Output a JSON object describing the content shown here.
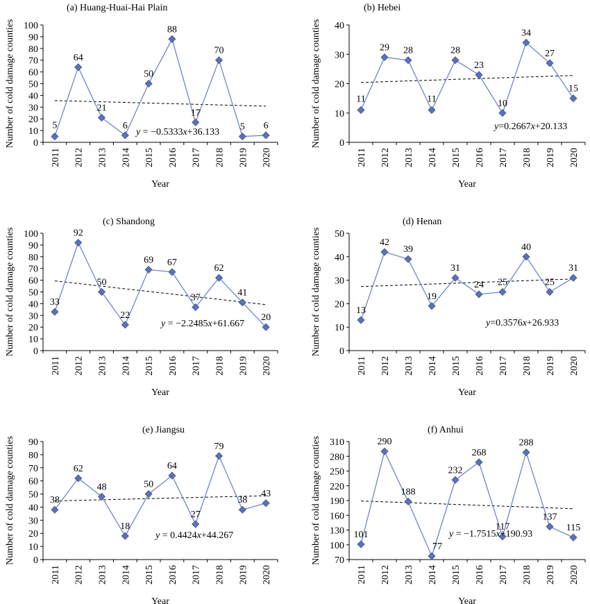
{
  "chart_data": [
    {
      "type": "line",
      "title": "(a) Huang-Huai-Hai Plain",
      "xlabel": "Year",
      "ylabel": "Number of cold damage counties",
      "categories": [
        "2011",
        "2012",
        "2013",
        "2014",
        "2015",
        "2016",
        "2017",
        "2018",
        "2019",
        "2020"
      ],
      "values": [
        5,
        64,
        21,
        6,
        50,
        88,
        17,
        70,
        5,
        6
      ],
      "ylim": [
        0,
        100
      ],
      "ystep": 10,
      "trend": {
        "slope": -0.5333,
        "intercept": 36.133
      },
      "equation": {
        "lhs": "y",
        "rhs_before_x": " = −0.5333",
        "var": "x",
        "rhs_after_x": "+36.133"
      },
      "equation_anchor": "bottom-right"
    },
    {
      "type": "line",
      "title": "(b) Hebei",
      "xlabel": "Year",
      "ylabel": "Number of cold damage counties",
      "categories": [
        "2011",
        "2012",
        "2013",
        "2014",
        "2015",
        "2016",
        "2017",
        "2018",
        "2019",
        "2020"
      ],
      "values": [
        11,
        29,
        28,
        11,
        28,
        23,
        10,
        34,
        27,
        15
      ],
      "ylim": [
        0,
        40
      ],
      "ystep": 10,
      "trend": {
        "slope": 0.2667,
        "intercept": 20.133
      },
      "equation": {
        "lhs": "y",
        "rhs_before_x": "=0.2667",
        "var": "x",
        "rhs_after_x": "+20.133"
      },
      "equation_anchor": "bottom-right"
    },
    {
      "type": "line",
      "title": "(c) Shandong",
      "xlabel": "Year",
      "ylabel": "Number of cold damage counties",
      "categories": [
        "2011",
        "2012",
        "2013",
        "2014",
        "2015",
        "2016",
        "2017",
        "2018",
        "2019",
        "2020"
      ],
      "values": [
        33,
        92,
        50,
        22,
        69,
        67,
        37,
        62,
        41,
        20
      ],
      "ylim": [
        0,
        100
      ],
      "ystep": 10,
      "trend": {
        "slope": -2.2485,
        "intercept": 61.667
      },
      "equation": {
        "lhs": "y",
        "rhs_before_x": " = −2.2485",
        "var": "x",
        "rhs_after_x": "+61.667"
      },
      "equation_anchor": "bottom-right"
    },
    {
      "type": "line",
      "title": "(d) Henan",
      "xlabel": "Year",
      "ylabel": "Number of cold damage counties",
      "categories": [
        "2011",
        "2012",
        "2013",
        "2014",
        "2015",
        "2016",
        "2017",
        "2018",
        "2019",
        "2020"
      ],
      "values": [
        13,
        42,
        39,
        19,
        31,
        24,
        25,
        40,
        25,
        31
      ],
      "ylim": [
        0,
        50
      ],
      "ystep": 10,
      "trend": {
        "slope": 0.3576,
        "intercept": 26.933
      },
      "equation": {
        "lhs": "y",
        "rhs_before_x": "=0.3576",
        "var": "x",
        "rhs_after_x": "+26.933"
      },
      "equation_anchor": "bottom-right"
    },
    {
      "type": "line",
      "title": "(e) Jiangsu",
      "xlabel": "Year",
      "ylabel": "Number of cold damage counties",
      "categories": [
        "2011",
        "2012",
        "2013",
        "2014",
        "2015",
        "2016",
        "2017",
        "2018",
        "2019",
        "2020"
      ],
      "values": [
        38,
        62,
        48,
        18,
        50,
        64,
        27,
        79,
        38,
        43
      ],
      "ylim": [
        0,
        90
      ],
      "ystep": 10,
      "trend": {
        "slope": 0.4424,
        "intercept": 44.267
      },
      "equation": {
        "lhs": "y",
        "rhs_before_x": " = 0.4424",
        "var": "x",
        "rhs_after_x": "+44.267"
      },
      "equation_anchor": "bottom-right"
    },
    {
      "type": "line",
      "title": "(f) Anhui",
      "xlabel": "Year",
      "ylabel": "Number of cold damage counties",
      "categories": [
        "2011",
        "2012",
        "2013",
        "2014",
        "2015",
        "2016",
        "2017",
        "2018",
        "2019",
        "2020"
      ],
      "values": [
        101,
        290,
        188,
        77,
        232,
        268,
        117,
        288,
        137,
        115
      ],
      "ylim": [
        70,
        310
      ],
      "ystep": 30,
      "trend": {
        "slope": -1.7515,
        "intercept": 190.93
      },
      "equation": {
        "lhs": "y",
        "rhs_before_x": " = −1.7515",
        "var": "x",
        "rhs_after_x": "+190.93"
      },
      "equation_anchor": "bottom-right"
    }
  ],
  "colors": {
    "series_line": "#6f86c6",
    "marker_fill": "#5b72b4",
    "marker_stroke": "#3f5595",
    "axis": "#000000",
    "trend": "#000000"
  }
}
